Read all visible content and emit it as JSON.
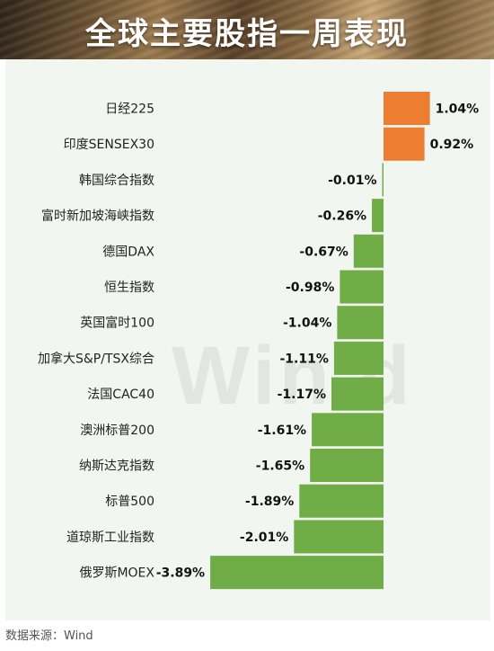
{
  "title": "全球主要股指一周表现",
  "source": "数据来源：Wind",
  "watermark": "Win.d",
  "colors": {
    "positive": "#ed7d31",
    "negative": "#70ad47"
  },
  "chart_data": {
    "type": "bar",
    "orientation": "horizontal",
    "categories": [
      "日经225",
      "印度SENSEX30",
      "韩国综合指数",
      "富时新加坡海峡指数",
      "德国DAX",
      "恒生指数",
      "英国富时100",
      "加拿大S&P/TSX综合",
      "法国CAC40",
      "澳洲标普200",
      "纳斯达克指数",
      "标普500",
      "道琼斯工业指数",
      "俄罗斯MOEX"
    ],
    "values": [
      1.04,
      0.92,
      -0.01,
      -0.26,
      -0.67,
      -0.98,
      -1.04,
      -1.11,
      -1.17,
      -1.61,
      -1.65,
      -1.89,
      -2.01,
      -3.89
    ],
    "labels": [
      "1.04%",
      "0.92%",
      "-0.01%",
      "-0.26%",
      "-0.67%",
      "-0.98%",
      "-1.04%",
      "-1.11%",
      "-1.17%",
      "-1.61%",
      "-1.65%",
      "-1.89%",
      "-2.01%",
      "-3.89%"
    ],
    "unit": "%"
  }
}
